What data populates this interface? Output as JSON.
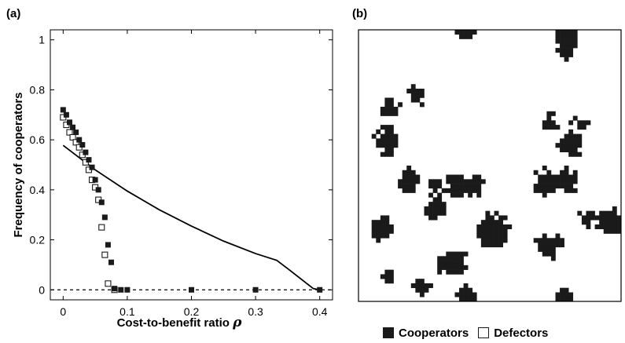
{
  "panel_a_label": "(a)",
  "panel_b_label": "(b)",
  "legend": {
    "cooperators": "Cooperators",
    "defectors": "Defectors"
  },
  "chart_data": [
    {
      "type": "scatter",
      "panel": "(a)",
      "title": "",
      "xlabel": "Cost-to-benefit ratio",
      "xlabel_symbol": "ρ",
      "ylabel": "Frequency of cooperators",
      "xlim": [
        -0.02,
        0.42
      ],
      "ylim": [
        -0.04,
        1.04
      ],
      "xticks": [
        0,
        0.1,
        0.2,
        0.3,
        0.4
      ],
      "xtick_labels": [
        "0",
        "0.1",
        "0.2",
        "0.3",
        "0.4"
      ],
      "yticks": [
        0,
        0.2,
        0.4,
        0.6,
        0.8,
        1
      ],
      "ytick_labels": [
        "0",
        "0.2",
        "0.4",
        "0.6",
        "0.8",
        "1"
      ],
      "grid": false,
      "series": [
        {
          "marker": "filled-square",
          "points": [
            [
              0,
              0.72
            ],
            [
              0.005,
              0.7
            ],
            [
              0.01,
              0.67
            ],
            [
              0.015,
              0.65
            ],
            [
              0.02,
              0.63
            ],
            [
              0.025,
              0.6
            ],
            [
              0.03,
              0.58
            ],
            [
              0.035,
              0.55
            ],
            [
              0.04,
              0.52
            ],
            [
              0.045,
              0.49
            ],
            [
              0.05,
              0.44
            ],
            [
              0.055,
              0.4
            ],
            [
              0.06,
              0.35
            ],
            [
              0.065,
              0.29
            ],
            [
              0.07,
              0.18
            ],
            [
              0.075,
              0.11
            ],
            [
              0.08,
              0.005
            ],
            [
              0.09,
              0.0
            ],
            [
              0.1,
              0.0
            ],
            [
              0.2,
              0.0
            ],
            [
              0.3,
              0.0
            ],
            [
              0.4,
              0.0
            ]
          ]
        },
        {
          "marker": "open-square",
          "points": [
            [
              0,
              0.69
            ],
            [
              0.005,
              0.66
            ],
            [
              0.01,
              0.63
            ],
            [
              0.015,
              0.61
            ],
            [
              0.02,
              0.59
            ],
            [
              0.025,
              0.57
            ],
            [
              0.03,
              0.54
            ],
            [
              0.035,
              0.51
            ],
            [
              0.04,
              0.48
            ],
            [
              0.045,
              0.44
            ],
            [
              0.05,
              0.41
            ],
            [
              0.055,
              0.36
            ],
            [
              0.06,
              0.25
            ],
            [
              0.065,
              0.14
            ],
            [
              0.07,
              0.025
            ],
            [
              0.08,
              0.0
            ]
          ]
        },
        {
          "style": "solid-line",
          "points": [
            [
              0,
              0.578
            ],
            [
              0.05,
              0.48
            ],
            [
              0.1,
              0.395
            ],
            [
              0.15,
              0.32
            ],
            [
              0.2,
              0.255
            ],
            [
              0.25,
              0.195
            ],
            [
              0.3,
              0.145
            ],
            [
              0.333,
              0.118
            ],
            [
              0.35,
              0.085
            ],
            [
              0.37,
              0.045
            ],
            [
              0.39,
              0.005
            ],
            [
              0.4,
              0.0
            ]
          ]
        },
        {
          "style": "dashed-line",
          "points": [
            [
              -0.02,
              0.0
            ],
            [
              0.42,
              0.0
            ]
          ]
        }
      ]
    },
    {
      "type": "heatmap",
      "panel": "(b)",
      "title": "",
      "rows": 60,
      "cols": 60,
      "values": "binary lattice; filled = cooperator, empty = defector",
      "clusters": [
        {
          "row": 0,
          "col": 24,
          "radius": 2.0
        },
        {
          "row": 1,
          "col": 47,
          "radius": 3.0
        },
        {
          "row": 4,
          "col": 47,
          "radius": 2.0
        },
        {
          "row": 14,
          "col": 13,
          "radius": 1.6
        },
        {
          "row": 17,
          "col": 7,
          "radius": 2.0
        },
        {
          "row": 24,
          "col": 6,
          "radius": 2.8
        },
        {
          "row": 20,
          "col": 43,
          "radius": 1.8
        },
        {
          "row": 20,
          "col": 50,
          "radius": 1.5
        },
        {
          "row": 25,
          "col": 48,
          "radius": 2.5
        },
        {
          "row": 33,
          "col": 11,
          "radius": 2.4
        },
        {
          "row": 34,
          "col": 17,
          "radius": 2.0
        },
        {
          "row": 34,
          "col": 22,
          "radius": 2.6
        },
        {
          "row": 34,
          "col": 26,
          "radius": 2.2
        },
        {
          "row": 33,
          "col": 42,
          "radius": 2.4
        },
        {
          "row": 33,
          "col": 47,
          "radius": 2.8
        },
        {
          "row": 39,
          "col": 17,
          "radius": 2.2
        },
        {
          "row": 43,
          "col": 5,
          "radius": 2.4
        },
        {
          "row": 41,
          "col": 52,
          "radius": 1.8
        },
        {
          "row": 44,
          "col": 30,
          "radius": 3.6
        },
        {
          "row": 42,
          "col": 57,
          "radius": 2.8
        },
        {
          "row": 47,
          "col": 43,
          "radius": 2.6
        },
        {
          "row": 51,
          "col": 21,
          "radius": 3.0
        },
        {
          "row": 54,
          "col": 6,
          "radius": 1.6
        },
        {
          "row": 56,
          "col": 14,
          "radius": 1.6
        },
        {
          "row": 58,
          "col": 24,
          "radius": 2.2
        },
        {
          "row": 59,
          "col": 47,
          "radius": 2.0
        }
      ],
      "legend": [
        "Cooperators",
        "Defectors"
      ]
    }
  ]
}
